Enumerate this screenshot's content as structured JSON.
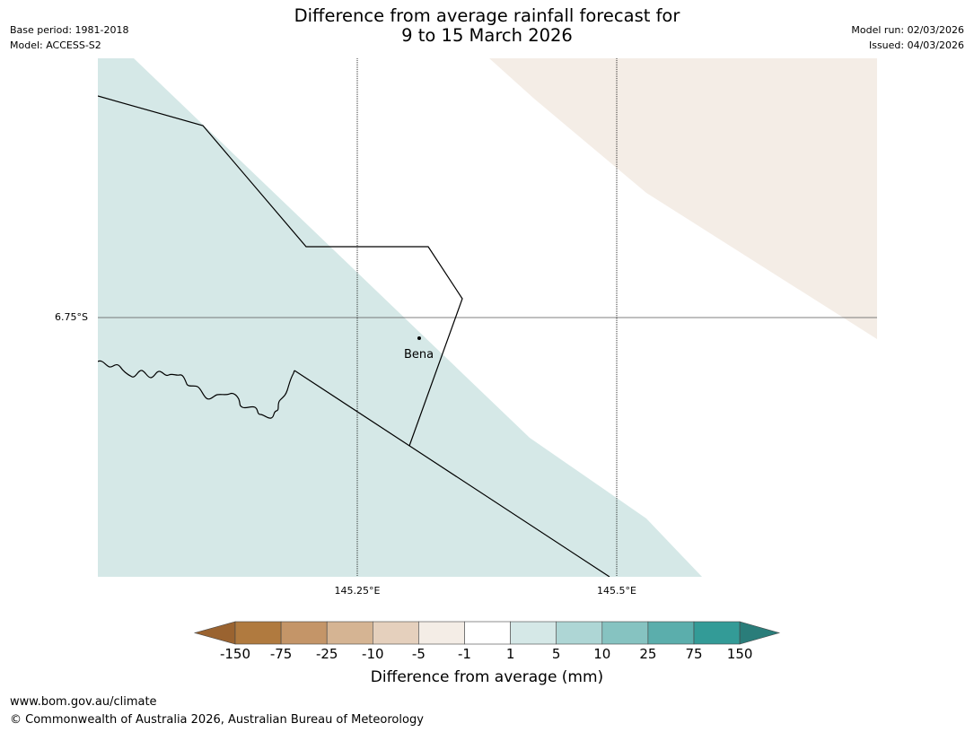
{
  "title": {
    "line1": "Difference from average rainfall forecast for",
    "line2": "9 to 15 March 2026"
  },
  "header": {
    "base_period": "Base period: 1981-2018",
    "model": "Model: ACCESS-S2",
    "model_run": "Model run: 02/03/2026",
    "issued": "Issued: 04/03/2026"
  },
  "map": {
    "lat_label": "6.75°S",
    "lon_labels": [
      "145.25°E",
      "145.5°E"
    ],
    "places": [
      {
        "name": "Bena"
      }
    ]
  },
  "colorbar": {
    "title": "Difference from average (mm)",
    "tick_labels": [
      "-150",
      "-75",
      "-25",
      "-10",
      "-5",
      "-1",
      "1",
      "5",
      "10",
      "25",
      "75",
      "150"
    ],
    "colors": [
      "#9a6330",
      "#b07a3f",
      "#c49568",
      "#d5b493",
      "#e5d0bd",
      "#f4ede6",
      "#ffffff",
      "#d5e8e7",
      "#aed6d5",
      "#86c3c1",
      "#5baeac",
      "#339b97",
      "#2a7d7a"
    ]
  },
  "footer": {
    "url": "www.bom.gov.au/climate",
    "copyright": "© Commonwealth of Australia 2026, Australian Bureau of Meteorology"
  }
}
